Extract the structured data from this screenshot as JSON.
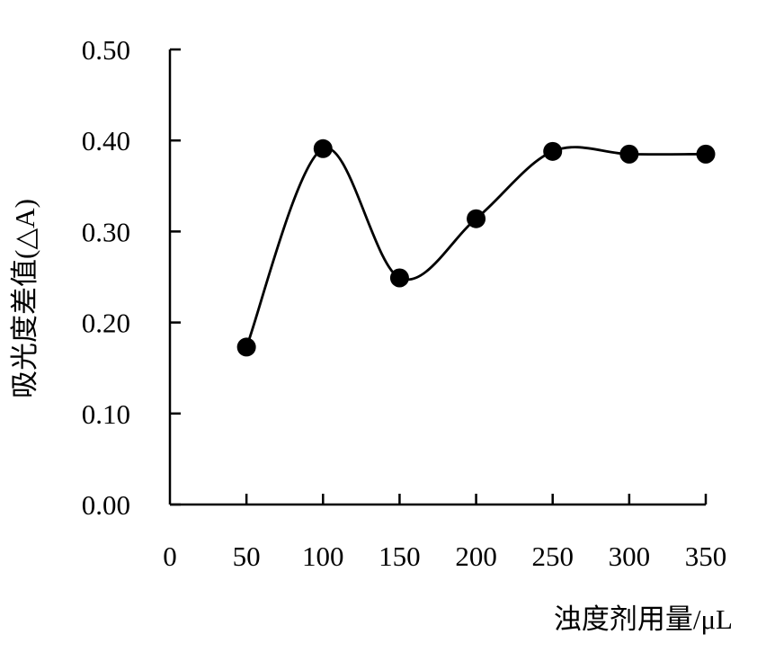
{
  "chart_data": {
    "type": "line",
    "title": "",
    "xlabel": "浊度剂用量/μL",
    "ylabel": "吸光度差值(△A)",
    "xlim": [
      0,
      350
    ],
    "ylim": [
      0,
      0.5
    ],
    "x_ticks": [
      0,
      50,
      100,
      150,
      200,
      250,
      300,
      350
    ],
    "x_tick_labels": [
      "0",
      "50",
      "100",
      "150",
      "200",
      "250",
      "300",
      "350"
    ],
    "y_ticks": [
      0,
      0.1,
      0.2,
      0.3,
      0.4,
      0.5
    ],
    "y_tick_labels": [
      "0.00",
      "0.10",
      "0.20",
      "0.30",
      "0.40",
      "0.50"
    ],
    "grid": false,
    "legend": "none",
    "series": [
      {
        "x": [
          50,
          100,
          150,
          200,
          250,
          300,
          350
        ],
        "y": [
          0.173,
          0.391,
          0.249,
          0.314,
          0.388,
          0.385,
          0.385
        ],
        "marker": "circle",
        "color": "#000000"
      }
    ]
  }
}
